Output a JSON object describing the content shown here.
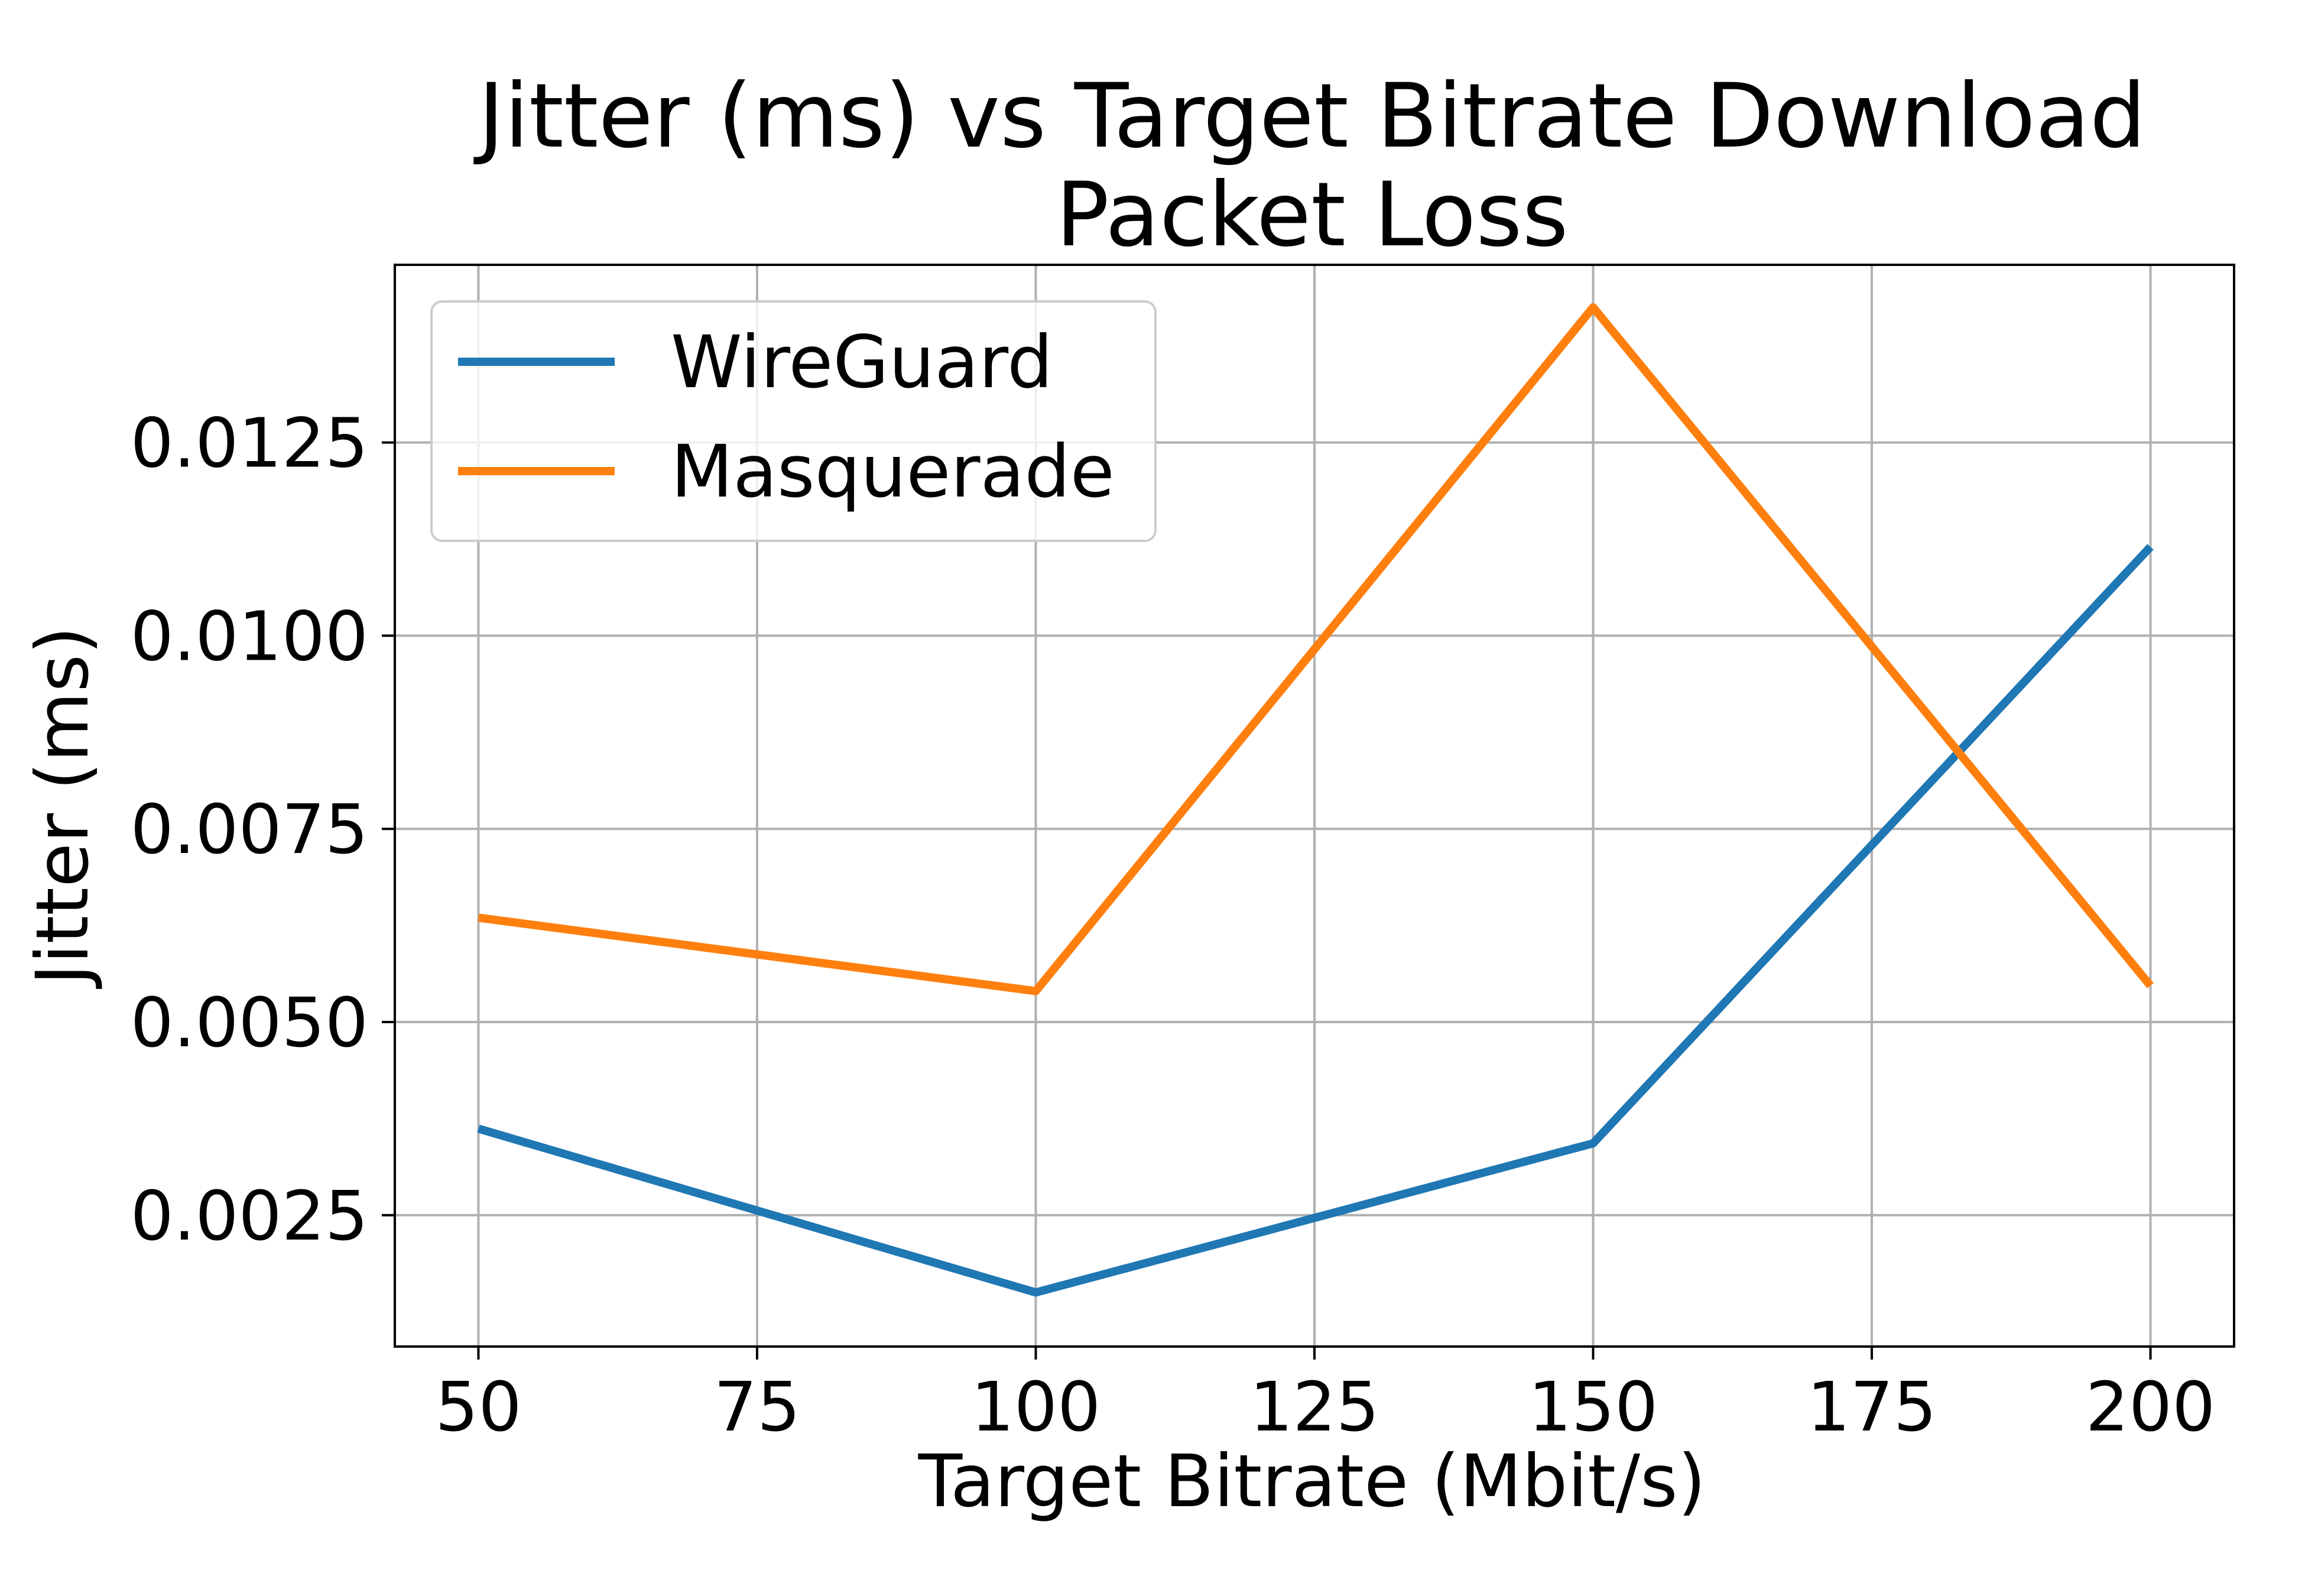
{
  "chart_data": {
    "type": "line",
    "title": [
      "Jitter (ms) vs Target Bitrate Download",
      "Packet Loss"
    ],
    "xlabel": "Target Bitrate (Mbit/s)",
    "ylabel": "Jitter (ms)",
    "xlim": [
      42.5,
      207.5
    ],
    "ylim": [
      0.0008,
      0.0148
    ],
    "xticks": [
      50,
      75,
      100,
      125,
      150,
      175,
      200
    ],
    "yticks": [
      0.0025,
      0.005,
      0.0075,
      0.01,
      0.0125
    ],
    "ytick_labels": [
      "0.0025",
      "0.0050",
      "0.0075",
      "0.0100",
      "0.0125"
    ],
    "grid": true,
    "legend_position": "top-left",
    "x": [
      50,
      100,
      150,
      200
    ],
    "series": [
      {
        "name": "WireGuard",
        "color": "#1f77b4",
        "values": [
          0.00362,
          0.0015,
          0.00343,
          0.01115
        ]
      },
      {
        "name": "Masquerade",
        "color": "#ff7f0e",
        "values": [
          0.00635,
          0.0054,
          0.01425,
          0.00547
        ]
      }
    ]
  }
}
